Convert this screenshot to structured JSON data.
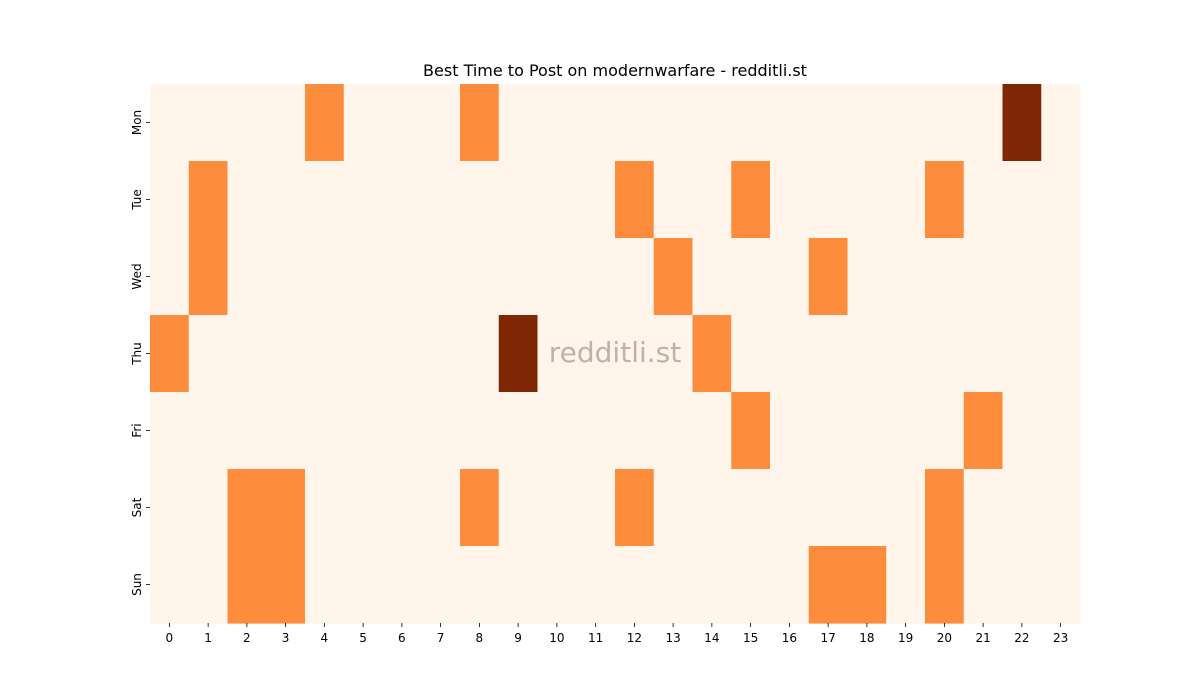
{
  "chart_data": {
    "type": "heatmap",
    "title": "Best Time to Post on modernwarfare - redditli.st",
    "watermark": "redditli.st",
    "xlabel": "",
    "ylabel": "",
    "x_categories": [
      "0",
      "1",
      "2",
      "3",
      "4",
      "5",
      "6",
      "7",
      "8",
      "9",
      "10",
      "11",
      "12",
      "13",
      "14",
      "15",
      "16",
      "17",
      "18",
      "19",
      "20",
      "21",
      "22",
      "23"
    ],
    "y_categories": [
      "Mon",
      "Tue",
      "Wed",
      "Thu",
      "Fri",
      "Sat",
      "Sun"
    ],
    "values": [
      [
        0,
        0,
        0,
        0,
        1,
        0,
        0,
        0,
        1,
        0,
        0,
        0,
        0,
        0,
        0,
        0,
        0,
        0,
        0,
        0,
        0,
        0,
        2,
        0
      ],
      [
        0,
        1,
        0,
        0,
        0,
        0,
        0,
        0,
        0,
        0,
        0,
        0,
        1,
        0,
        0,
        1,
        0,
        0,
        0,
        0,
        1,
        0,
        0,
        0
      ],
      [
        0,
        1,
        0,
        0,
        0,
        0,
        0,
        0,
        0,
        0,
        0,
        0,
        0,
        1,
        0,
        0,
        0,
        1,
        0,
        0,
        0,
        0,
        0,
        0
      ],
      [
        1,
        0,
        0,
        0,
        0,
        0,
        0,
        0,
        0,
        2,
        0,
        0,
        0,
        0,
        1,
        0,
        0,
        0,
        0,
        0,
        0,
        0,
        0,
        0
      ],
      [
        0,
        0,
        0,
        0,
        0,
        0,
        0,
        0,
        0,
        0,
        0,
        0,
        0,
        0,
        0,
        1,
        0,
        0,
        0,
        0,
        0,
        1,
        0,
        0
      ],
      [
        0,
        0,
        1,
        1,
        0,
        0,
        0,
        0,
        1,
        0,
        0,
        0,
        1,
        0,
        0,
        0,
        0,
        0,
        0,
        0,
        1,
        0,
        0,
        0
      ],
      [
        0,
        0,
        1,
        1,
        0,
        0,
        0,
        0,
        0,
        0,
        0,
        0,
        0,
        0,
        0,
        0,
        0,
        1,
        1,
        0,
        1,
        0,
        0,
        0
      ]
    ],
    "colors": {
      "0": "#fff5eb",
      "1": "#fd8d3c",
      "2": "#7f2704"
    },
    "colorbar": false,
    "grid": false
  }
}
